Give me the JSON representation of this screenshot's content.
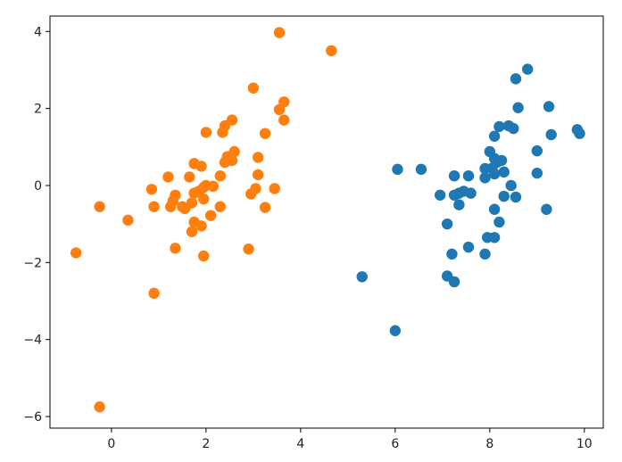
{
  "chart_data": {
    "type": "scatter",
    "title": "",
    "xlabel": "",
    "ylabel": "",
    "xlim": [
      -1.3,
      10.4
    ],
    "ylim": [
      -6.3,
      4.4
    ],
    "xticks": [
      0,
      2,
      4,
      6,
      8,
      10
    ],
    "yticks": [
      -6,
      -4,
      -2,
      0,
      2,
      4
    ],
    "xtick_labels": [
      "0",
      "2",
      "4",
      "6",
      "8",
      "10"
    ],
    "ytick_labels": [
      "−6",
      "−4",
      "−2",
      "0",
      "2",
      "4"
    ],
    "grid": false,
    "legend": "none",
    "series": [
      {
        "color": "#1f77b4",
        "points": [
          [
            8.8,
            3.02
          ],
          [
            8.55,
            2.77
          ],
          [
            8.6,
            2.02
          ],
          [
            9.25,
            2.05
          ],
          [
            8.2,
            1.53
          ],
          [
            8.4,
            1.55
          ],
          [
            8.5,
            1.48
          ],
          [
            8.1,
            1.28
          ],
          [
            9.85,
            1.45
          ],
          [
            9.9,
            1.35
          ],
          [
            9.3,
            1.32
          ],
          [
            9.0,
            0.9
          ],
          [
            8.0,
            0.88
          ],
          [
            8.1,
            0.7
          ],
          [
            8.15,
            0.6
          ],
          [
            8.25,
            0.65
          ],
          [
            8.05,
            0.45
          ],
          [
            7.9,
            0.44
          ],
          [
            6.05,
            0.42
          ],
          [
            6.55,
            0.42
          ],
          [
            7.25,
            0.25
          ],
          [
            7.55,
            0.25
          ],
          [
            7.9,
            0.2
          ],
          [
            8.1,
            0.3
          ],
          [
            8.3,
            0.35
          ],
          [
            9.0,
            0.32
          ],
          [
            8.45,
            0.0
          ],
          [
            7.35,
            -0.2
          ],
          [
            7.45,
            -0.15
          ],
          [
            7.6,
            -0.2
          ],
          [
            7.25,
            -0.25
          ],
          [
            6.95,
            -0.25
          ],
          [
            8.3,
            -0.28
          ],
          [
            8.55,
            -0.3
          ],
          [
            7.35,
            -0.5
          ],
          [
            8.1,
            -0.62
          ],
          [
            9.2,
            -0.62
          ],
          [
            8.2,
            -0.95
          ],
          [
            7.1,
            -1.0
          ],
          [
            7.95,
            -1.35
          ],
          [
            8.1,
            -1.35
          ],
          [
            7.55,
            -1.6
          ],
          [
            7.2,
            -1.78
          ],
          [
            7.9,
            -1.78
          ],
          [
            7.1,
            -2.35
          ],
          [
            7.25,
            -2.5
          ],
          [
            5.3,
            -2.37
          ],
          [
            6.0,
            -3.77
          ]
        ]
      },
      {
        "color": "#ff7f0e",
        "points": [
          [
            3.55,
            3.97
          ],
          [
            4.65,
            3.5
          ],
          [
            3.0,
            2.53
          ],
          [
            3.65,
            2.17
          ],
          [
            3.55,
            1.97
          ],
          [
            3.65,
            1.7
          ],
          [
            2.55,
            1.7
          ],
          [
            2.4,
            1.55
          ],
          [
            2.35,
            1.38
          ],
          [
            2.0,
            1.38
          ],
          [
            3.25,
            1.35
          ],
          [
            2.6,
            0.88
          ],
          [
            2.45,
            0.75
          ],
          [
            2.55,
            0.65
          ],
          [
            3.1,
            0.73
          ],
          [
            2.4,
            0.6
          ],
          [
            1.75,
            0.57
          ],
          [
            1.9,
            0.5
          ],
          [
            3.1,
            0.28
          ],
          [
            2.3,
            0.25
          ],
          [
            1.65,
            0.22
          ],
          [
            1.2,
            0.22
          ],
          [
            2.0,
            0.0
          ],
          [
            2.15,
            -0.02
          ],
          [
            1.95,
            -0.05
          ],
          [
            3.05,
            -0.08
          ],
          [
            3.45,
            -0.08
          ],
          [
            0.85,
            -0.1
          ],
          [
            1.85,
            -0.15
          ],
          [
            1.75,
            -0.2
          ],
          [
            2.95,
            -0.22
          ],
          [
            1.35,
            -0.25
          ],
          [
            1.3,
            -0.4
          ],
          [
            1.95,
            -0.35
          ],
          [
            1.7,
            -0.45
          ],
          [
            0.9,
            -0.55
          ],
          [
            1.25,
            -0.55
          ],
          [
            1.5,
            -0.55
          ],
          [
            1.55,
            -0.6
          ],
          [
            2.3,
            -0.55
          ],
          [
            3.25,
            -0.57
          ],
          [
            -0.25,
            -0.55
          ],
          [
            2.1,
            -0.78
          ],
          [
            0.35,
            -0.9
          ],
          [
            1.75,
            -0.95
          ],
          [
            1.9,
            -1.05
          ],
          [
            1.7,
            -1.2
          ],
          [
            1.35,
            -1.63
          ],
          [
            2.9,
            -1.65
          ],
          [
            -0.75,
            -1.75
          ],
          [
            1.95,
            -1.83
          ],
          [
            0.9,
            -2.8
          ],
          [
            -0.25,
            -5.75
          ]
        ]
      }
    ]
  }
}
